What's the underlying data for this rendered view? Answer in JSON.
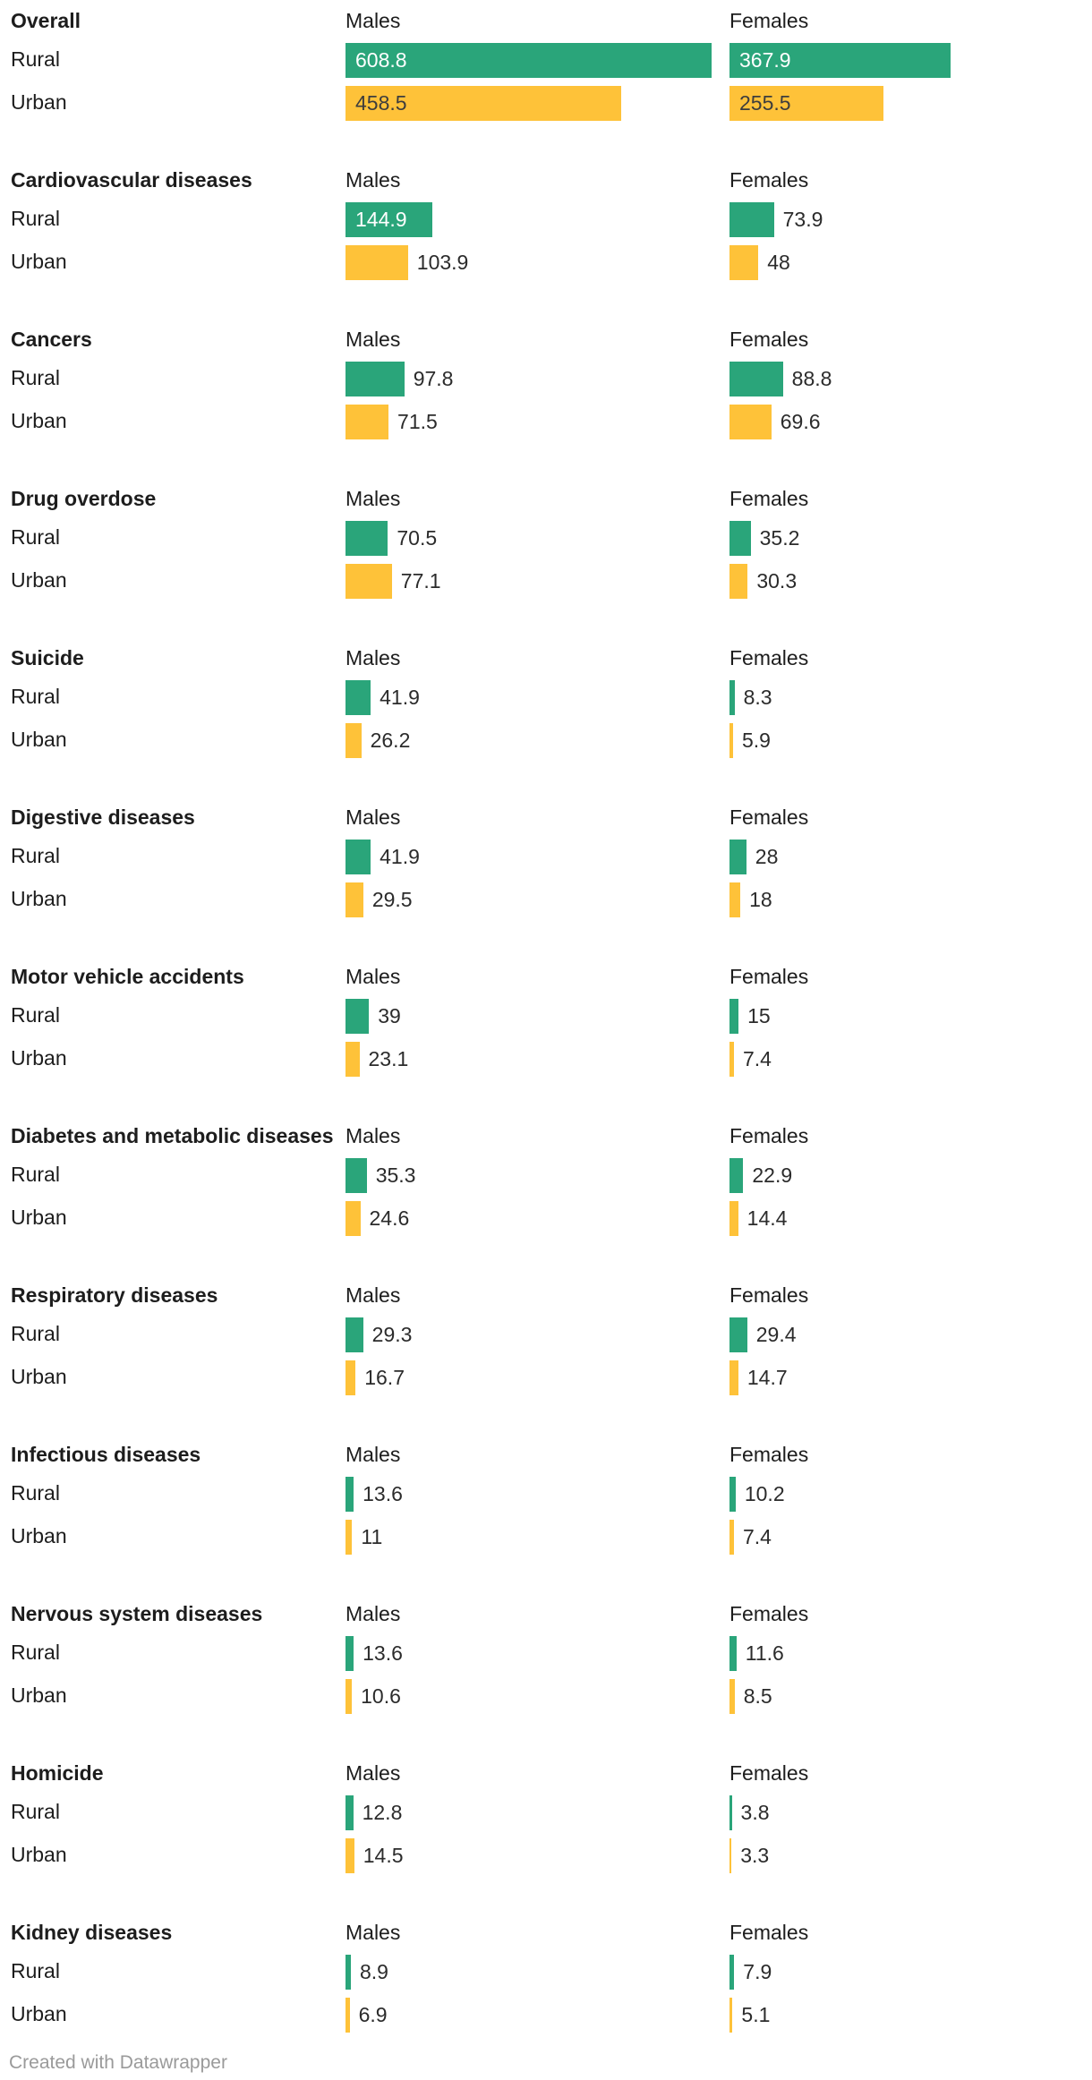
{
  "chart_data": {
    "type": "bar",
    "columns": [
      "Males",
      "Females"
    ],
    "series_labels": [
      "Rural",
      "Urban"
    ],
    "colors": {
      "Rural": "#2aa57a",
      "Urban": "#fec239"
    },
    "categories": [
      {
        "name": "Overall",
        "males": {
          "rural": "608.8",
          "urban": "458.5"
        },
        "females": {
          "rural": "367.9",
          "urban": "255.5"
        }
      },
      {
        "name": "Cardiovascular diseases",
        "males": {
          "rural": "144.9",
          "urban": "103.9"
        },
        "females": {
          "rural": "73.9",
          "urban": "48"
        }
      },
      {
        "name": "Cancers",
        "males": {
          "rural": "97.8",
          "urban": "71.5"
        },
        "females": {
          "rural": "88.8",
          "urban": "69.6"
        }
      },
      {
        "name": "Drug overdose",
        "males": {
          "rural": "70.5",
          "urban": "77.1"
        },
        "females": {
          "rural": "35.2",
          "urban": "30.3"
        }
      },
      {
        "name": "Suicide",
        "males": {
          "rural": "41.9",
          "urban": "26.2"
        },
        "females": {
          "rural": "8.3",
          "urban": "5.9"
        }
      },
      {
        "name": "Digestive diseases",
        "males": {
          "rural": "41.9",
          "urban": "29.5"
        },
        "females": {
          "rural": "28",
          "urban": "18"
        }
      },
      {
        "name": "Motor vehicle accidents",
        "males": {
          "rural": "39",
          "urban": "23.1"
        },
        "females": {
          "rural": "15",
          "urban": "7.4"
        }
      },
      {
        "name": "Diabetes and metabolic diseases",
        "males": {
          "rural": "35.3",
          "urban": "24.6"
        },
        "females": {
          "rural": "22.9",
          "urban": "14.4"
        }
      },
      {
        "name": "Respiratory diseases",
        "males": {
          "rural": "29.3",
          "urban": "16.7"
        },
        "females": {
          "rural": "29.4",
          "urban": "14.7"
        }
      },
      {
        "name": "Infectious diseases",
        "males": {
          "rural": "13.6",
          "urban": "11"
        },
        "females": {
          "rural": "10.2",
          "urban": "7.4"
        }
      },
      {
        "name": "Nervous system diseases",
        "males": {
          "rural": "13.6",
          "urban": "10.6"
        },
        "females": {
          "rural": "11.6",
          "urban": "8.5"
        }
      },
      {
        "name": "Homicide",
        "males": {
          "rural": "12.8",
          "urban": "14.5"
        },
        "females": {
          "rural": "3.8",
          "urban": "3.3"
        }
      },
      {
        "name": "Kidney diseases",
        "males": {
          "rural": "8.9",
          "urban": "6.9"
        },
        "females": {
          "rural": "7.9",
          "urban": "5.1"
        }
      }
    ]
  },
  "footer": {
    "credit": "Created with Datawrapper"
  }
}
